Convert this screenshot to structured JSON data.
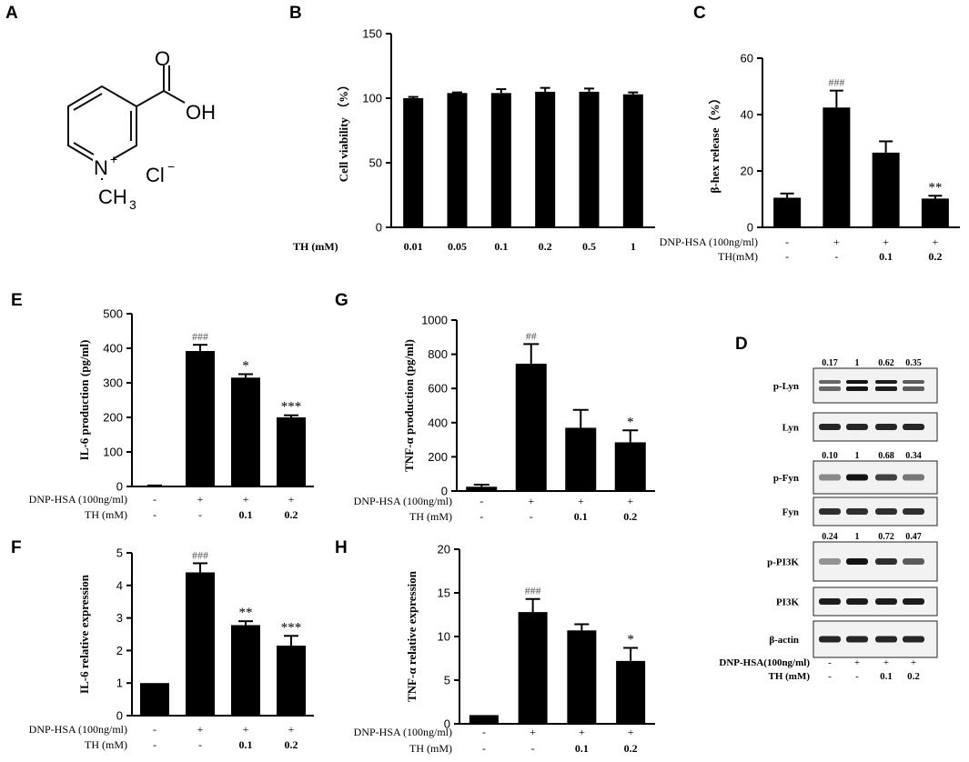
{
  "panels": {
    "A": {
      "letter": "A"
    },
    "B": {
      "letter": "B"
    },
    "C": {
      "letter": "C"
    },
    "D": {
      "letter": "D"
    },
    "E": {
      "letter": "E"
    },
    "F": {
      "letter": "F"
    },
    "G": {
      "letter": "G"
    },
    "H": {
      "letter": "H"
    }
  },
  "structure": {
    "oh": "OH",
    "o": "O",
    "n": "N",
    "plus": "+",
    "ch3": "CH",
    "ch3_sub": "3",
    "cl": "Cl",
    "cl_sup": "−"
  },
  "chart_data": [
    {
      "panel": "B",
      "type": "bar",
      "ylabel": "Cell viability （%）",
      "ylim": [
        0,
        150
      ],
      "yticks": [
        0,
        50,
        100,
        150
      ],
      "categories": [
        "0.01",
        "0.05",
        "0.1",
        "0.2",
        "0.5",
        "1"
      ],
      "values": [
        100,
        104,
        104,
        105,
        105,
        103
      ],
      "errors": [
        1,
        0.5,
        3,
        3,
        2.5,
        1.5
      ],
      "annotations": [
        "",
        "",
        "",
        "",
        "",
        ""
      ],
      "treatment_rows": [
        {
          "label": "TH  (mM)",
          "values": [
            "0.01",
            "0.05",
            "0.1",
            "0.2",
            "0.5",
            "1"
          ]
        }
      ]
    },
    {
      "panel": "C",
      "type": "bar",
      "ylabel": "β-hex release（%）",
      "ylim": [
        0,
        60
      ],
      "yticks": [
        0,
        20,
        40,
        60
      ],
      "values": [
        10.5,
        42.5,
        26.5,
        10.2
      ],
      "errors": [
        1.5,
        6,
        4,
        1
      ],
      "annotations": [
        "",
        "###",
        "",
        "**"
      ],
      "treatment_rows": [
        {
          "label": "DNP-HSA (100ng/ml)",
          "values": [
            "-",
            "+",
            "+",
            "+"
          ]
        },
        {
          "label": "TH(mM)",
          "values": [
            "-",
            "-",
            "0.1",
            "0.2"
          ]
        }
      ]
    },
    {
      "panel": "E",
      "type": "bar",
      "ylabel": "IL-6 production (pg/ml)",
      "ylim": [
        0,
        500
      ],
      "yticks": [
        0,
        100,
        200,
        300,
        400,
        500
      ],
      "values": [
        2,
        392,
        315,
        200
      ],
      "errors": [
        1,
        18,
        10,
        6
      ],
      "annotations": [
        "",
        "###",
        "*",
        "***"
      ],
      "treatment_rows": [
        {
          "label": "DNP-HSA (100ng/ml)",
          "values": [
            "-",
            "+",
            "+",
            "+"
          ]
        },
        {
          "label": "TH (mM)",
          "values": [
            "-",
            "-",
            "0.1",
            "0.2"
          ]
        }
      ]
    },
    {
      "panel": "G",
      "type": "bar",
      "ylabel": "TNF-α production (pg/ml)",
      "ylim": [
        0,
        1000
      ],
      "yticks": [
        0,
        200,
        400,
        600,
        800,
        1000
      ],
      "values": [
        25,
        745,
        370,
        285
      ],
      "errors": [
        12,
        115,
        105,
        70
      ],
      "annotations": [
        "",
        "##",
        "",
        "*"
      ],
      "treatment_rows": [
        {
          "label": "DNP-HSA (100ng/ml)",
          "values": [
            "-",
            "+",
            "+",
            "+"
          ]
        },
        {
          "label": "TH (mM)",
          "values": [
            "-",
            "-",
            "0.1",
            "0.2"
          ]
        }
      ]
    },
    {
      "panel": "F",
      "type": "bar",
      "ylabel": "IL-6 relative expression",
      "ylim": [
        0,
        5
      ],
      "yticks": [
        0,
        1,
        2,
        3,
        4,
        5
      ],
      "values": [
        1,
        4.4,
        2.78,
        2.15
      ],
      "errors": [
        0,
        0.28,
        0.12,
        0.3
      ],
      "annotations": [
        "",
        "###",
        "**",
        "***"
      ],
      "treatment_rows": [
        {
          "label": "DNP-HSA (100ng/ml)",
          "values": [
            "-",
            "+",
            "+",
            "+"
          ]
        },
        {
          "label": "TH (mM)",
          "values": [
            "-",
            "-",
            "0.1",
            "0.2"
          ]
        }
      ]
    },
    {
      "panel": "H",
      "type": "bar",
      "ylabel": "TNF-α relative expression",
      "ylim": [
        0,
        20
      ],
      "yticks": [
        0,
        5,
        10,
        15,
        20
      ],
      "values": [
        1,
        12.8,
        10.7,
        7.2
      ],
      "errors": [
        0,
        1.5,
        0.7,
        1.5
      ],
      "annotations": [
        "",
        "###",
        "",
        "*"
      ],
      "treatment_rows": [
        {
          "label": "DNP-HSA (100ng/ml)",
          "values": [
            "-",
            "+",
            "+",
            "+"
          ]
        },
        {
          "label": "TH (mM)",
          "values": [
            "-",
            "-",
            "0.1",
            "0.2"
          ]
        }
      ]
    }
  ],
  "western_blot": {
    "panel": "D",
    "rows": [
      {
        "label": "p-Lyn",
        "quant": [
          "0.17",
          "1",
          "0.62",
          "0.35"
        ],
        "intensity": [
          0.55,
          1,
          0.95,
          0.6
        ],
        "double": true
      },
      {
        "label": "Lyn",
        "quant": [],
        "intensity": [
          0.9,
          0.9,
          0.9,
          0.9
        ],
        "double": false
      },
      {
        "label": "p-Fyn",
        "quant": [
          "0.10",
          "1",
          "0.68",
          "0.34"
        ],
        "intensity": [
          0.35,
          1,
          0.75,
          0.45
        ],
        "double": false
      },
      {
        "label": "Fyn",
        "quant": [],
        "intensity": [
          0.85,
          0.85,
          0.85,
          0.85
        ],
        "double": false
      },
      {
        "label": "p-PI3K",
        "quant": [
          "0.24",
          "1",
          "0.72",
          "0.47"
        ],
        "intensity": [
          0.3,
          1,
          0.85,
          0.6
        ],
        "double": false
      },
      {
        "label": "PI3K",
        "quant": [],
        "intensity": [
          0.95,
          0.95,
          0.95,
          0.95
        ],
        "double": false
      },
      {
        "label": "β-actin",
        "quant": [],
        "intensity": [
          0.9,
          0.9,
          0.9,
          0.9
        ],
        "double": false
      }
    ],
    "treatment_rows": [
      {
        "label": "DNP-HSA(100ng/ml)",
        "values": [
          "-",
          "+",
          "+",
          "+"
        ]
      },
      {
        "label": "TH  (mM)",
        "values": [
          "-",
          "-",
          "0.1",
          "0.2"
        ]
      }
    ]
  }
}
